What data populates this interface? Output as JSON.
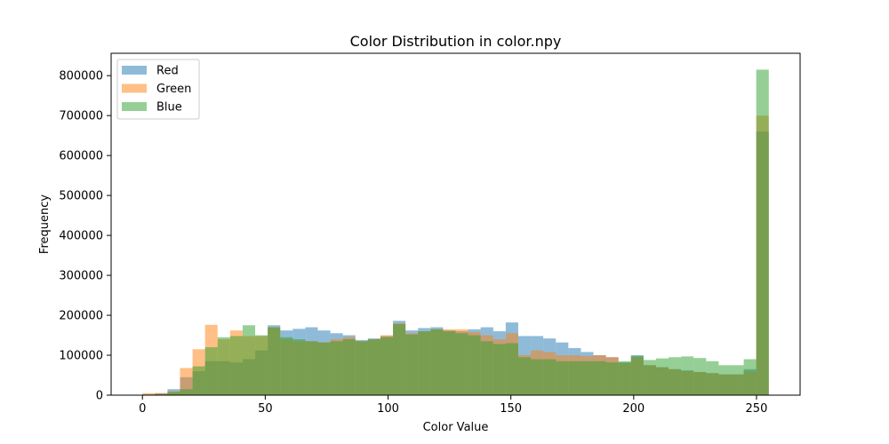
{
  "chart_data": {
    "type": "histogram",
    "title": "Color Distribution in color.npy",
    "xlabel": "Color Value",
    "ylabel": "Frequency",
    "xlim": [
      -12.75,
      267.75
    ],
    "ylim": [
      0,
      856000
    ],
    "x_ticks": [
      0,
      50,
      100,
      150,
      200,
      250
    ],
    "y_ticks": [
      0,
      100000,
      200000,
      300000,
      400000,
      500000,
      600000,
      700000,
      800000
    ],
    "bin_start": 0,
    "bin_width": 5.1,
    "bin_count": 50,
    "alpha": 0.5,
    "legend_position": "upper-left",
    "grid": false,
    "series": [
      {
        "name": "Red",
        "color": "#1f77b4",
        "values": [
          2000,
          5000,
          15000,
          45000,
          60000,
          85000,
          85000,
          82000,
          90000,
          112000,
          175000,
          162000,
          166000,
          170000,
          162000,
          155000,
          150000,
          138000,
          142000,
          148000,
          186000,
          162000,
          168000,
          170000,
          162000,
          160000,
          165000,
          170000,
          160000,
          182000,
          148000,
          148000,
          142000,
          132000,
          118000,
          108000,
          100000,
          95000,
          82000,
          100000,
          75000,
          70000,
          65000,
          62000,
          58000,
          55000,
          52000,
          52000,
          65000,
          660000
        ]
      },
      {
        "name": "Green",
        "color": "#ff7f0e",
        "values": [
          5000,
          5000,
          10000,
          68000,
          115000,
          176000,
          140000,
          162000,
          148000,
          148000,
          170000,
          140000,
          135000,
          135000,
          132000,
          140000,
          145000,
          135000,
          140000,
          150000,
          180000,
          155000,
          160000,
          165000,
          165000,
          165000,
          158000,
          150000,
          140000,
          155000,
          100000,
          112000,
          108000,
          100000,
          100000,
          98000,
          100000,
          95000,
          80000,
          95000,
          75000,
          70000,
          65000,
          60000,
          58000,
          55000,
          52000,
          52000,
          60000,
          700000
        ]
      },
      {
        "name": "Blue",
        "color": "#2ca02c",
        "values": [
          1000,
          2000,
          8000,
          15000,
          72000,
          120000,
          145000,
          148000,
          175000,
          150000,
          170000,
          145000,
          140000,
          135000,
          132000,
          135000,
          140000,
          135000,
          140000,
          145000,
          178000,
          152000,
          160000,
          165000,
          160000,
          155000,
          150000,
          135000,
          128000,
          130000,
          95000,
          90000,
          90000,
          85000,
          85000,
          85000,
          85000,
          82000,
          85000,
          98000,
          88000,
          92000,
          95000,
          97000,
          93000,
          85000,
          75000,
          75000,
          90000,
          815000
        ]
      }
    ]
  }
}
